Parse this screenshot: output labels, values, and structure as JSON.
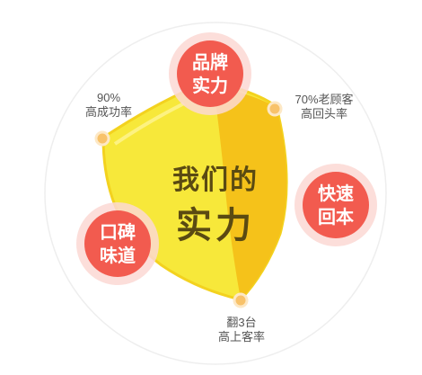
{
  "center": {
    "line1": "我们的",
    "line2": "实力"
  },
  "badges": {
    "brand": {
      "line1": "品牌",
      "line2": "实力"
    },
    "fast_return": {
      "line1": "快速",
      "line2": "回本"
    },
    "taste": {
      "line1": "口碑",
      "line2": "味道"
    }
  },
  "stats": {
    "gross_margin": {
      "line1": "90%",
      "line2": "高成功率"
    },
    "repeat_customers": {
      "line1": "70%老顾客",
      "line2": "高回头率"
    },
    "table_turnover": {
      "line1": "翻3台",
      "line2": "高上客率"
    }
  },
  "colors": {
    "badge_red": "#f25b4f",
    "badge_halo": "#fbd8d4",
    "shield_yellow": "#f7e83a",
    "shield_gold": "#f5c21a",
    "dot_orange": "#f8c26a"
  }
}
